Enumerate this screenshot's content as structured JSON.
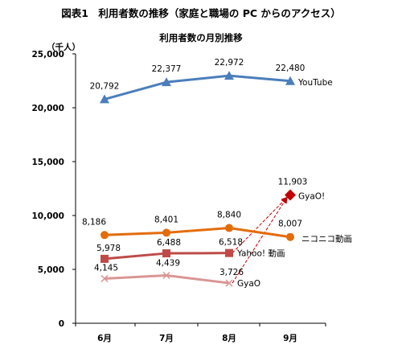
{
  "figure_title": "図表1　利用者数の推移（家庭と職場の PC からのアクセス）",
  "chart_data": {
    "type": "line",
    "title": "利用者数の月別推移",
    "ylabel": "（千人）",
    "xlabel": "",
    "categories": [
      "6月",
      "7月",
      "8月",
      "9月"
    ],
    "ylim": [
      0,
      25000
    ],
    "yticks": [
      0,
      5000,
      10000,
      15000,
      20000,
      25000
    ],
    "ytick_labels": [
      "0",
      "5,000",
      "10,000",
      "15,000",
      "20,000",
      "25,000"
    ],
    "grid": false,
    "series": [
      {
        "name": "YouTube",
        "values": [
          20792,
          22377,
          22972,
          22480
        ],
        "labels": [
          "20,792",
          "22,377",
          "22,972",
          "22,480"
        ],
        "color": "#4a7ebb",
        "marker": "triangle"
      },
      {
        "name": "ニコニコ動画",
        "values": [
          8186,
          8401,
          8840,
          8007
        ],
        "labels": [
          "8,186",
          "8,401",
          "8,840",
          "8,007"
        ],
        "color": "#e46c0a",
        "marker": "circle"
      },
      {
        "name": "Yahoo! 動画",
        "values": [
          5978,
          6488,
          6518,
          null
        ],
        "labels": [
          "5,978",
          "6,488",
          "6,518",
          ""
        ],
        "color": "#be4b48",
        "marker": "square"
      },
      {
        "name": "GyaO",
        "values": [
          4145,
          4439,
          3726,
          null
        ],
        "labels": [
          "4,145",
          "4,439",
          "3,726",
          ""
        ],
        "color": "#d99694",
        "marker": "x"
      },
      {
        "name": "GyaO!",
        "values": [
          null,
          null,
          null,
          11903
        ],
        "labels": [
          "",
          "",
          "",
          "11,903"
        ],
        "color": "#c00000",
        "marker": "diamond"
      }
    ],
    "annotations": [
      {
        "type": "dashed-arrow",
        "from_series": "Yahoo! 動画",
        "from": "8月",
        "to_series": "GyaO!",
        "to": "9月"
      },
      {
        "type": "dashed-arrow",
        "from_series": "GyaO",
        "from": "8月",
        "to_series": "GyaO!",
        "to": "9月"
      }
    ]
  }
}
